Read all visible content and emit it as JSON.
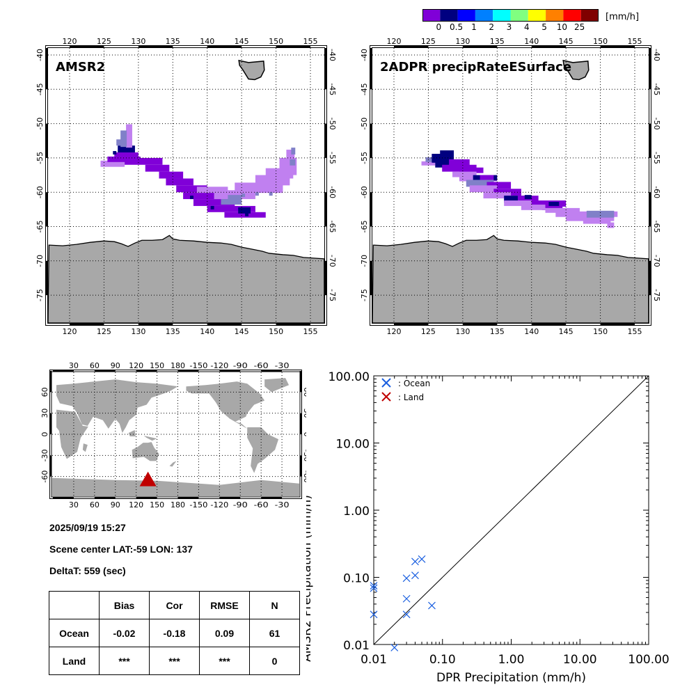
{
  "colorbar": {
    "unit": "[mm/h]",
    "colors": [
      "#8000d8",
      "#000080",
      "#0000ff",
      "#0080ff",
      "#00ffff",
      "#80ff80",
      "#ffff00",
      "#ff8000",
      "#ff0000",
      "#800000"
    ],
    "labels": [
      "0",
      "0.5",
      "1",
      "2",
      "3",
      "4",
      "5",
      "10",
      "25"
    ]
  },
  "maps": [
    {
      "title": "AMSR2",
      "lon_ticks": [
        "120",
        "125",
        "130",
        "135",
        "140",
        "145",
        "150",
        "155"
      ],
      "lat_ticks": [
        "-40",
        "-45",
        "-50",
        "-55",
        "-60",
        "-65",
        "-70",
        "-75"
      ]
    },
    {
      "title": "2ADPR precipRateESurface",
      "lon_ticks": [
        "120",
        "125",
        "130",
        "135",
        "140",
        "145",
        "150",
        "155"
      ],
      "lat_ticks": [
        "-40",
        "-45",
        "-50",
        "-55",
        "-60",
        "-65",
        "-70",
        "-75"
      ]
    }
  ],
  "globe": {
    "lon_ticks": [
      "30",
      "60",
      "90",
      "120",
      "150",
      "180",
      "-150",
      "-120",
      "-90",
      "-60",
      "-30"
    ],
    "lat_ticks": [
      "60",
      "30",
      "0",
      "-30",
      "-60"
    ],
    "marker_color": "#c00000"
  },
  "info": {
    "datetime": "2025/09/19 15:27",
    "scene_center": "Scene center LAT:-59   LON: 137",
    "delta_t": "DeltaT:  559 (sec)"
  },
  "stats_table": {
    "headers": [
      "",
      "Bias",
      "Cor",
      "RMSE",
      "N"
    ],
    "rows": [
      [
        "Ocean",
        "-0.02",
        "-0.18",
        "0.09",
        "61"
      ],
      [
        "Land",
        "***",
        "***",
        "***",
        "0"
      ]
    ]
  },
  "chart_data": {
    "type": "scatter",
    "title": "",
    "xlabel": "DPR Precipitation (mm/h)",
    "ylabel": "AMSR2 Precipitation (mm/h)",
    "xscale": "log",
    "yscale": "log",
    "xlim": [
      0.01,
      100
    ],
    "ylim": [
      0.01,
      100
    ],
    "x_tick_labels": [
      "0.01",
      "0.10",
      "1.00",
      "10.00",
      "100.00"
    ],
    "y_tick_labels": [
      "0.01",
      "0.10",
      "1.00",
      "10.00",
      "100.00"
    ],
    "legend": [
      {
        "label": ": Ocean",
        "color": "#1a5fe0"
      },
      {
        "label": ": Land",
        "color": "#c00000"
      }
    ],
    "legend_position": "top-left",
    "reference_line": "1:1",
    "series": [
      {
        "name": "Ocean",
        "color": "#1a5fe0",
        "points": [
          [
            0.01,
            0.075
          ],
          [
            0.01,
            0.069
          ],
          [
            0.01,
            0.028
          ],
          [
            0.02,
            0.009
          ],
          [
            0.03,
            0.097
          ],
          [
            0.03,
            0.048
          ],
          [
            0.03,
            0.028
          ],
          [
            0.04,
            0.107
          ],
          [
            0.04,
            0.172
          ],
          [
            0.05,
            0.187
          ],
          [
            0.07,
            0.038
          ]
        ]
      },
      {
        "name": "Land",
        "color": "#c00000",
        "points": []
      }
    ]
  }
}
